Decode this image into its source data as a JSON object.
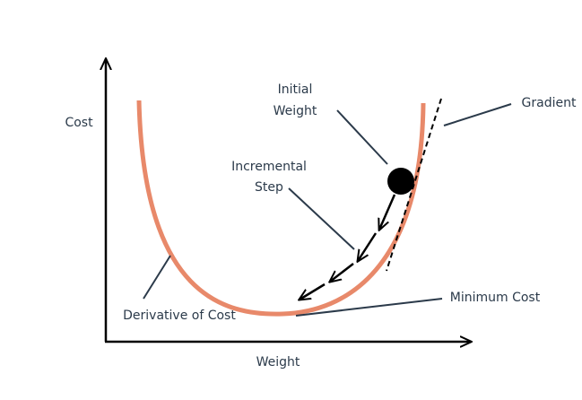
{
  "labels": {
    "y_axis": "Cost",
    "x_axis": "Weight",
    "initial_weight": [
      "Initial",
      "Weight"
    ],
    "incremental_step": [
      "Incremental",
      "Step"
    ],
    "gradient": "Gradient",
    "minimum_cost": "Minimum Cost",
    "derivative": "Derivative of Cost"
  }
}
